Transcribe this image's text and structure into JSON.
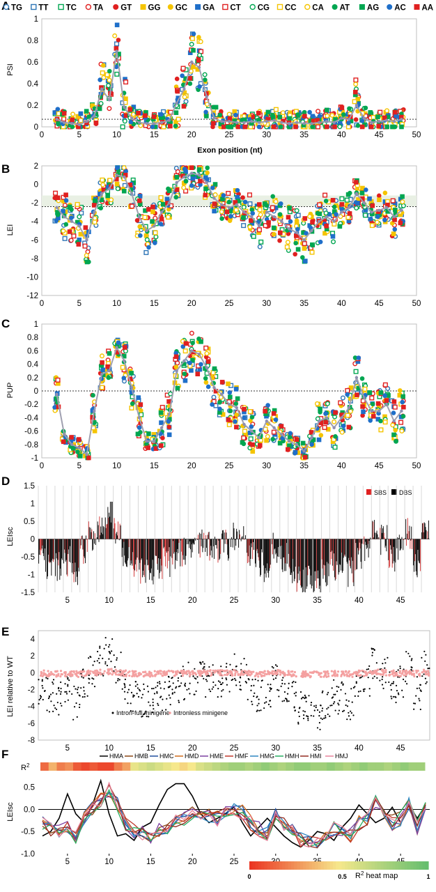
{
  "chart_data": [
    {
      "panel": "A",
      "type": "scatter",
      "ylabel": "PSI",
      "xlabel": "Exon position (nt)",
      "xlim": [
        0,
        50
      ],
      "ylim": [
        0,
        1
      ],
      "xticks": [
        "0",
        "5",
        "10",
        "15",
        "20",
        "25",
        "30",
        "35",
        "40",
        "45",
        "50"
      ],
      "yticks": [
        "0",
        "0.2",
        "0.4",
        "0.6",
        "0.8",
        "1"
      ],
      "reference_line": 0.07,
      "legend": [
        {
          "name": "TG",
          "marker": "circle-open",
          "color": "#2e75b6"
        },
        {
          "name": "TT",
          "marker": "square-open",
          "color": "#2e75b6"
        },
        {
          "name": "TC",
          "marker": "square-open",
          "color": "#00a651"
        },
        {
          "name": "TA",
          "marker": "circle-open",
          "color": "#e02020"
        },
        {
          "name": "GT",
          "marker": "circle-filled",
          "color": "#e02020"
        },
        {
          "name": "GG",
          "marker": "square-filled",
          "color": "#f5c400"
        },
        {
          "name": "GC",
          "marker": "circle-filled",
          "color": "#f5c400"
        },
        {
          "name": "GA",
          "marker": "square-filled",
          "color": "#1f6fc9"
        },
        {
          "name": "CT",
          "marker": "square-open",
          "color": "#e02020"
        },
        {
          "name": "CG",
          "marker": "circle-open",
          "color": "#00a651"
        },
        {
          "name": "CC",
          "marker": "square-open",
          "color": "#f5c400"
        },
        {
          "name": "CA",
          "marker": "circle-open",
          "color": "#f5c400"
        },
        {
          "name": "AT",
          "marker": "circle-filled",
          "color": "#00a651"
        },
        {
          "name": "AG",
          "marker": "square-filled",
          "color": "#00a651"
        },
        {
          "name": "AC",
          "marker": "circle-filled",
          "color": "#1f6fc9"
        },
        {
          "name": "AA",
          "marker": "square-filled",
          "color": "#e02020"
        }
      ],
      "positions": [
        2,
        3,
        4,
        5,
        6,
        7,
        8,
        9,
        10,
        11,
        12,
        13,
        14,
        15,
        16,
        17,
        18,
        19,
        20,
        21,
        22,
        23,
        24,
        25,
        26,
        27,
        28,
        29,
        30,
        31,
        32,
        33,
        34,
        35,
        36,
        37,
        38,
        39,
        40,
        41,
        42,
        43,
        44,
        45,
        46,
        47,
        48
      ],
      "mean": [
        0.07,
        0.04,
        0.03,
        0.02,
        0.05,
        0.1,
        0.35,
        0.25,
        0.7,
        0.18,
        0.08,
        0.04,
        0.03,
        0.03,
        0.04,
        0.06,
        0.22,
        0.35,
        0.6,
        0.55,
        0.28,
        0.08,
        0.05,
        0.05,
        0.04,
        0.04,
        0.05,
        0.04,
        0.05,
        0.06,
        0.04,
        0.03,
        0.04,
        0.03,
        0.03,
        0.04,
        0.05,
        0.04,
        0.08,
        0.07,
        0.2,
        0.08,
        0.04,
        0.05,
        0.06,
        0.05,
        0.07
      ]
    },
    {
      "panel": "B",
      "type": "scatter",
      "ylabel": "LEI",
      "xlim": [
        0,
        50
      ],
      "ylim": [
        -12,
        2
      ],
      "xticks": [
        "0",
        "5",
        "10",
        "15",
        "20",
        "25",
        "30",
        "35",
        "40",
        "45",
        "50"
      ],
      "yticks": [
        "2",
        "0",
        "-2",
        "-4",
        "-6",
        "-8",
        "-10",
        "-12"
      ],
      "band": [
        -2.4,
        -1.2
      ],
      "reference_line": -2.4,
      "mean": [
        -2.5,
        -3.5,
        -4.0,
        -4.5,
        -6.0,
        -3.0,
        -1.0,
        -0.5,
        1.0,
        0.8,
        -1.0,
        -3.5,
        -5.0,
        -4.5,
        -3.0,
        -2.0,
        0.2,
        0.8,
        1.2,
        1.0,
        0.2,
        -1.5,
        -2.2,
        -2.5,
        -2.2,
        -3.0,
        -3.5,
        -4.5,
        -3.0,
        -3.5,
        -4.0,
        -4.8,
        -5.2,
        -6.0,
        -5.0,
        -4.0,
        -3.5,
        -4.0,
        -3.0,
        -2.5,
        -1.0,
        -2.0,
        -3.0,
        -2.8,
        -2.5,
        -3.5,
        -2.8
      ]
    },
    {
      "panel": "C",
      "type": "scatter",
      "ylabel": "PUP",
      "xlim": [
        0,
        50
      ],
      "ylim": [
        -1,
        1
      ],
      "xticks": [
        "0",
        "5",
        "10",
        "15",
        "20",
        "25",
        "30",
        "35",
        "40",
        "45",
        "50"
      ],
      "yticks": [
        "1",
        "0.8",
        "0.6",
        "0.4",
        "0.2",
        "0",
        "-0.2",
        "-0.4",
        "-0.6",
        "-0.8",
        "-1"
      ],
      "reference_line": 0,
      "mean": [
        -0.05,
        -0.65,
        -0.8,
        -0.85,
        -0.95,
        -0.3,
        0.25,
        0.3,
        0.65,
        0.45,
        0.05,
        -0.4,
        -0.75,
        -0.75,
        -0.55,
        -0.35,
        0.3,
        0.45,
        0.6,
        0.55,
        0.35,
        0.05,
        -0.05,
        -0.2,
        -0.25,
        -0.5,
        -0.6,
        -0.7,
        -0.45,
        -0.55,
        -0.65,
        -0.75,
        -0.8,
        -0.9,
        -0.7,
        -0.45,
        -0.4,
        -0.55,
        -0.4,
        -0.25,
        0.2,
        -0.1,
        -0.3,
        -0.3,
        -0.2,
        -0.45,
        -0.3
      ]
    },
    {
      "panel": "D",
      "type": "bar",
      "ylabel": "LEIsc",
      "xlim": [
        1.5,
        48.5
      ],
      "ylim": [
        -1.5,
        1.5
      ],
      "xticks": [
        "5",
        "10",
        "15",
        "20",
        "25",
        "30",
        "35",
        "40",
        "45"
      ],
      "yticks": [
        "1.5",
        "1",
        "0.5",
        "0",
        "-0.5",
        "-1",
        "-1.5"
      ],
      "legend": [
        {
          "name": "SBS",
          "color": "#e02020"
        },
        {
          "name": "DBS",
          "color": "#000000"
        }
      ]
    },
    {
      "panel": "E",
      "type": "scatter",
      "ylabel": "LEI relative to WT",
      "xlim": [
        1.5,
        48.5
      ],
      "ylim": [
        -8,
        5
      ],
      "xticks": [
        "5",
        "10",
        "15",
        "20",
        "25",
        "30",
        "35",
        "40",
        "45"
      ],
      "yticks": [
        "4",
        "2",
        "0",
        "-2",
        "-4",
        "-6",
        "-8"
      ],
      "legend": [
        {
          "name": "Intron-full minigene",
          "color": "#000000"
        },
        {
          "name": "Intronless minigene",
          "color": "#f4a0a0"
        }
      ]
    },
    {
      "panel": "F",
      "type": "line",
      "ylabel": "LEIsc",
      "xlim": [
        1.5,
        48.5
      ],
      "ylim": [
        -1.0,
        0.7
      ],
      "xticks": [
        "5",
        "10",
        "15",
        "20",
        "25",
        "30",
        "35",
        "40",
        "45"
      ],
      "yticks": [
        "0.5",
        "0.0",
        "-0.5",
        "-1.0"
      ],
      "r2_label": "R",
      "r2_sup": "2",
      "heatmap_caption": "R",
      "heatmap_caption_sup": "2",
      "heatmap_caption_tail": " heat map",
      "heatmap_ticks": [
        "0",
        "0.5",
        "1"
      ],
      "r2_values": [
        0.15,
        0.35,
        0.2,
        0.25,
        0.1,
        0.05,
        0.1,
        0.05,
        0.05,
        0.2,
        0.3,
        0.55,
        0.6,
        0.65,
        0.6,
        0.55,
        0.5,
        0.45,
        0.5,
        0.6,
        0.65,
        0.7,
        0.75,
        0.8,
        0.8,
        0.75,
        0.8,
        0.85,
        0.8,
        0.75,
        0.8,
        0.85,
        0.85,
        0.8,
        0.8,
        0.85,
        0.8,
        0.75,
        0.8,
        0.85,
        0.8,
        0.8,
        0.75,
        0.8,
        0.85,
        0.8,
        0.8
      ],
      "series": [
        {
          "name": "HMA",
          "color": "#000000"
        },
        {
          "name": "HMB",
          "color": "#8B4513"
        },
        {
          "name": "HMC",
          "color": "#1f4e9e"
        },
        {
          "name": "HMD",
          "color": "#d06a1a"
        },
        {
          "name": "HME",
          "color": "#7b3fa0"
        },
        {
          "name": "HMF",
          "color": "#c0392b"
        },
        {
          "name": "HMG",
          "color": "#2e86c1"
        },
        {
          "name": "HMH",
          "color": "#27ae60"
        },
        {
          "name": "HMI",
          "color": "#922b21"
        },
        {
          "name": "HMJ",
          "color": "#e8839a"
        }
      ],
      "mean": [
        -0.3,
        -0.45,
        -0.5,
        -0.4,
        -0.6,
        -0.2,
        0.05,
        0.2,
        0.45,
        0.1,
        -0.3,
        -0.5,
        -0.55,
        -0.6,
        -0.45,
        -0.4,
        -0.3,
        -0.2,
        -0.1,
        -0.1,
        -0.15,
        -0.2,
        -0.1,
        0.05,
        -0.05,
        -0.3,
        -0.45,
        -0.55,
        -0.15,
        -0.3,
        -0.5,
        -0.7,
        -0.75,
        -0.8,
        -0.6,
        -0.45,
        -0.5,
        -0.6,
        -0.3,
        -0.2,
        0.2,
        0.0,
        -0.3,
        -0.2,
        0.1,
        -0.4,
        0.1
      ],
      "hma": [
        -0.6,
        -0.5,
        -0.2,
        0.35,
        -0.1,
        -0.3,
        0.1,
        0.65,
        -0.1,
        -0.6,
        -0.55,
        -0.7,
        -0.4,
        -0.3,
        0.1,
        0.45,
        0.58,
        0.58,
        0.3,
        -0.1,
        -0.3,
        -0.2,
        -0.1,
        0.05,
        -0.3,
        -0.6,
        -0.4,
        -0.2,
        -0.4,
        -0.6,
        -0.75,
        -0.85,
        -0.7,
        -0.5,
        -0.55,
        -0.7,
        -0.4,
        -0.2,
        0.1,
        -0.1,
        -0.3,
        -0.2,
        0.05,
        -0.3,
        0.1,
        -0.2,
        0.1
      ]
    }
  ],
  "panel_letters": {
    "a": "A",
    "b": "B",
    "c": "C",
    "d": "D",
    "e": "E",
    "f": "F"
  }
}
